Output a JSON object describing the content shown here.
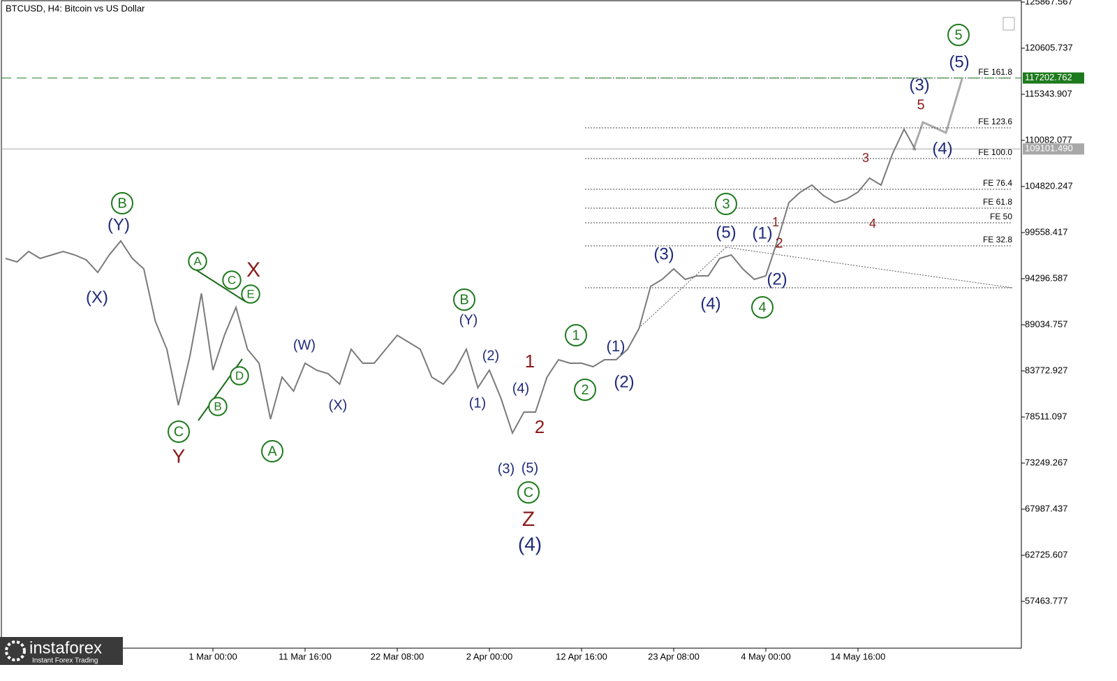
{
  "chart_data": {
    "type": "line",
    "title": "BTCUSD, H4:  Bitcoin vs US Dollar",
    "categories": [
      null,
      null,
      null,
      null,
      null,
      null,
      null,
      null,
      null,
      null,
      null,
      null,
      null,
      null,
      null,
      null,
      null,
      null,
      "1 Mar 00:00",
      null,
      null,
      null,
      null,
      null,
      null,
      null,
      "11 Mar 16:00",
      null,
      null,
      null,
      null,
      null,
      null,
      null,
      "22 Mar 08:00",
      null,
      null,
      null,
      null,
      null,
      null,
      null,
      "2 Apr 00:00",
      null,
      null,
      null,
      null,
      null,
      null,
      null,
      "12 Apr 16:00",
      null,
      null,
      null,
      null,
      null,
      null,
      null,
      "23 Apr 08:00",
      null,
      null,
      null,
      null,
      null,
      null,
      null,
      "4 May 00:00",
      null,
      null,
      null,
      null,
      null,
      null,
      null,
      "14 May 16:00",
      null,
      null,
      null,
      null,
      null
    ],
    "series": [
      {
        "color": "#7a7a7a",
        "values": [
          96609,
          96210,
          97406,
          96609,
          97007,
          97406,
          97007,
          96449,
          95014,
          97007,
          98607,
          96609,
          95413,
          89433,
          86244,
          79866,
          85447,
          92622,
          83853,
          87839,
          91028,
          86244,
          84650,
          78272,
          83056,
          81461,
          84650,
          83853,
          83454,
          82258,
          86244,
          84650,
          84650,
          86244,
          87839,
          87042,
          86244,
          83056,
          82258,
          83853,
          86244,
          81859,
          83853,
          80663,
          76677,
          79069,
          79069,
          83056,
          85049,
          84650,
          84650,
          84252,
          85049,
          85049,
          86244,
          88636,
          93420,
          94217,
          95413,
          94217,
          94616,
          94616,
          96609,
          97007,
          95413,
          94217,
          94616,
          98607,
          102987,
          104183,
          104980,
          103784,
          102987,
          103385,
          104183,
          105777,
          104980,
          108568,
          111357,
          108966
        ]
      }
    ],
    "ylim": [
      52123,
      126107
    ],
    "yticks": [
      57463.777,
      62725.607,
      67987.437,
      73249.267,
      78511.097,
      83772.927,
      89034.757,
      94296.587,
      99558.417,
      104820.247,
      110082.077,
      115343.907,
      120605.737,
      125867.567
    ],
    "price_lines": [
      {
        "value": 117202.762,
        "label": "117202.762",
        "color": "#1e7a1e"
      },
      {
        "value": 109101.49,
        "label": "109101.490",
        "color": "#a8a8a8"
      }
    ],
    "fib_levels": [
      {
        "value": 117202.762,
        "label": "FE 161.8"
      },
      {
        "value": 111517,
        "label": "FE 123.6"
      },
      {
        "value": 108009,
        "label": "FE 100.0"
      },
      {
        "value": 104500,
        "label": "FE 76.4"
      },
      {
        "value": 102349,
        "label": "FE 61.8"
      },
      {
        "value": 100675,
        "label": "FE 50"
      },
      {
        "value": 98044,
        "label": "FE 32.8"
      },
      {
        "value": 93260
      }
    ],
    "wave_labels": [
      "B",
      "A",
      "C",
      "E",
      "D",
      "B",
      "C",
      "A",
      "B",
      "C",
      "1",
      "2",
      "3",
      "4",
      "5",
      "(Y)",
      "(X)",
      "(W)",
      "(X)",
      "(Y)",
      "(2)",
      "(1)",
      "(4)",
      "(3)",
      "(5)",
      "(4)",
      "(1)",
      "(2)",
      "(3)",
      "(4)",
      "(5)",
      "(1)",
      "(2)",
      "(3)",
      "(4)",
      "(5)",
      "X",
      "Y",
      "1",
      "2",
      "Z",
      "1",
      "2",
      "3",
      "4",
      "5"
    ],
    "logo": {
      "brand": "instaforex",
      "tagline": "Instant Forex Trading"
    }
  }
}
